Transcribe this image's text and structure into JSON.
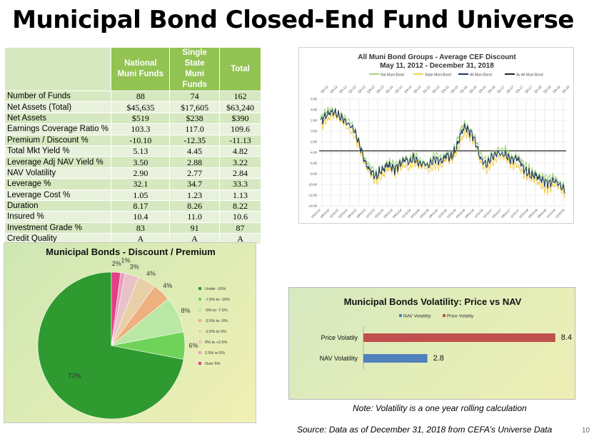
{
  "title": "Municipal Bond Closed-End Fund Universe",
  "table": {
    "headers": [
      {
        "line1": "National",
        "line2": "Muni Funds"
      },
      {
        "line1": "Single State",
        "line2": "Muni Funds"
      },
      {
        "line1": "Total",
        "line2": ""
      }
    ],
    "rows": [
      {
        "label": "Number of Funds",
        "values": [
          "88",
          "74",
          "162"
        ]
      },
      {
        "label": "Net Assets (Total)",
        "values": [
          "$45,635",
          "$17,605",
          "$63,240"
        ]
      },
      {
        "label": "Net Assets",
        "values": [
          "$519",
          "$238",
          "$390"
        ]
      },
      {
        "label": "Earnings Coverage Ratio %",
        "values": [
          "103.3",
          "117.0",
          "109.6"
        ]
      },
      {
        "label": "Premium / Discount %",
        "values": [
          "-10.10",
          "-12.35",
          "-11.13"
        ]
      },
      {
        "label": "Total Mkt Yield %",
        "values": [
          "5.13",
          "4.45",
          "4.82"
        ]
      },
      {
        "label": "Leverage Adj NAV Yield %",
        "values": [
          "3.50",
          "2.88",
          "3.22"
        ]
      },
      {
        "label": "NAV Volatility",
        "values": [
          "2.90",
          "2.77",
          "2.84"
        ]
      },
      {
        "label": "Leverage %",
        "values": [
          "32.1",
          "34.7",
          "33.3"
        ]
      },
      {
        "label": "Leverage Cost  %",
        "values": [
          "1.05",
          "1.23",
          "1.13"
        ]
      },
      {
        "label": "Duration",
        "values": [
          "8.17",
          "8.26",
          "8.22"
        ]
      },
      {
        "label": "Insured %",
        "values": [
          "10.4",
          "11.0",
          "10.6"
        ]
      },
      {
        "label": "Investment Grade %",
        "values": [
          "83",
          "91",
          "87"
        ]
      },
      {
        "label": "Credit Quality",
        "values": [
          "A",
          "A",
          "A"
        ]
      }
    ]
  },
  "note": "Note: Volatility is a one year rolling calculation",
  "source": "Source: Data as of December 31, 2018 from CEFA’s Universe Data",
  "page_number": "10",
  "chart_data": [
    {
      "type": "line",
      "title": "All Muni Bond Groups - Average CEF Discount",
      "subtitle": "May 11, 2012 - December 31, 2018",
      "legend": [
        "Nat Muni Bond",
        "State Muni Bond",
        "All Muni Bond",
        "Av All Muni Bond"
      ],
      "legend_position": "top",
      "colors": [
        "#9fd27e",
        "#f3d04a",
        "#1f3a5a",
        "#222222"
      ],
      "top_ticks": [
        "Q2-12",
        "Q3-12",
        "Q4-12",
        "Q1-13",
        "Q2-13",
        "Q3-13",
        "Q4-13",
        "Q1-14",
        "Q2-14",
        "Q3-14",
        "Q4-14",
        "Q1-15",
        "Q2-15",
        "Q3-15",
        "Q4-15",
        "Q1-16",
        "Q2-16",
        "Q3-16",
        "Q4-16",
        "Q1-17",
        "Q2-17",
        "Q3-17",
        "Q4-17",
        "Q1-18",
        "Q2-18",
        "Q3-18",
        "Q4-18"
      ],
      "bottom_ticks": [
        "05/11/12",
        "08/11/12",
        "11/11/12",
        "02/11/13",
        "05/11/13",
        "08/11/13",
        "11/11/13",
        "02/11/14",
        "05/11/14",
        "08/11/14",
        "11/11/14",
        "02/11/15",
        "05/11/15",
        "08/11/15",
        "11/11/15",
        "02/11/16",
        "05/11/16",
        "08/11/16",
        "11/11/16",
        "02/11/17",
        "05/11/17",
        "08/11/17",
        "11/11/17",
        "02/11/18",
        "05/11/18",
        "08/11/18",
        "11/11/18",
        "12/31/18"
      ],
      "y_ticks": [
        "6.00",
        "4.00",
        "2.00",
        "0.00",
        "-2.00",
        "-4.00",
        "-6.00",
        "-8.00",
        "-10.00",
        "-12.00",
        "-14.00"
      ],
      "ylim": [
        -14,
        6
      ],
      "average_line": -3.7,
      "anchor_values": [
        1.8,
        2.6,
        3.2,
        3.6,
        3.4,
        2.8,
        2.3,
        1.6,
        1.0,
        0.3,
        -1.5,
        -3.5,
        -5.8,
        -7.0,
        -7.8,
        -8.6,
        -7.6,
        -7.2,
        -6.3,
        -6.6,
        -7.2,
        -6.5,
        -5.8,
        -5.2,
        -6.0,
        -5.0,
        -5.6,
        -6.2,
        -6.0,
        -6.6,
        -5.8,
        -5.2,
        -5.6,
        -5.6,
        -4.4,
        -5.0,
        -4.2,
        -2.6,
        -0.3,
        0.8,
        0.1,
        -0.6,
        -2.3,
        -4.8,
        -5.8,
        -6.3,
        -5.0,
        -4.6,
        -4.0,
        -4.4,
        -4.3,
        -5.2,
        -5.4,
        -5.0,
        -5.8,
        -7.2,
        -7.8,
        -8.4,
        -8.2,
        -8.8,
        -9.2,
        -9.6,
        -9.8,
        -9.2,
        -9.6,
        -10.4,
        -11.0
      ]
    },
    {
      "type": "pie",
      "title": "Municipal Bonds - Discount / Premium",
      "legend_position": "right",
      "categories": [
        "Under -10%",
        "-7.5% to -10%",
        "-5% to -7.5%",
        "-2.5% to -5%",
        "-2.5% to 0%",
        "0% to +2.5%",
        "2.5% to 5%",
        "Over 5%"
      ],
      "values": [
        72,
        6,
        8,
        4,
        4,
        3,
        1,
        2
      ],
      "labels": [
        "72%",
        "6%",
        "8%",
        "4%",
        "4%",
        "3%",
        "1%",
        "2%"
      ],
      "colors": [
        "#2e9a30",
        "#6fd35a",
        "#b9e8a4",
        "#eeb07e",
        "#e8cfa8",
        "#e8c2c6",
        "#ec9cbc",
        "#e33f86"
      ]
    },
    {
      "type": "bar",
      "title": "Municipal Bonds Volatility: Price vs NAV",
      "legend": [
        "NAV Volatility",
        "Price Volatily"
      ],
      "legend_position": "top",
      "categories": [
        "Price Volatily",
        "NAV Volatility"
      ],
      "values": [
        8.4,
        2.8
      ],
      "labels": [
        "8.4",
        "2.8"
      ],
      "xlim": [
        0,
        9
      ],
      "colors": [
        "#c0504d",
        "#4f81bd"
      ]
    }
  ]
}
